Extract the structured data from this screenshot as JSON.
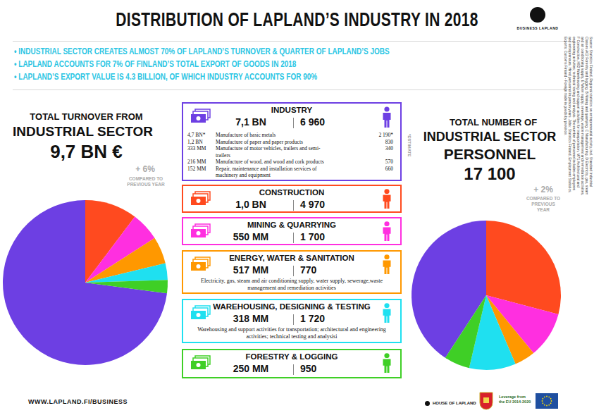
{
  "header": {
    "title": "DISTRIBUTION OF LAPLAND’S INDUSTRY IN 2018",
    "logo": "BUSINESS LAPLAND"
  },
  "bullets": [
    "• INDUSTRIAL SECTOR CREATES ALMOST 70% OF LAPLAND’S TURNOVER & QUARTER OF LAPLAND’S JOBS",
    "• LAPLAND ACCOUNTS FOR 7% OF FINLAND’S TOTAL EXPORT OF GOODS IN 2018",
    "• LAPLAND’S EXPORT VALUE IS 4.3 BILLION, OF WHICH INDUSTRY ACCOUNTS FOR 90%"
  ],
  "chart_data": [
    {
      "type": "pie",
      "title_lines": [
        "TOTAL TURNOVER FROM",
        "INDUSTRIAL SECTOR"
      ],
      "total": "9,7 BN €",
      "change": "+ 6%",
      "change_note": "COMPARED TO PREVIOUS YEAR",
      "categories": [
        "INDUSTRY",
        "CONSTRUCTION",
        "MINING & QUARRYING",
        "ENERGY, WATER & SANITATION",
        "WAREHOUSING, DESIGNING & TESTING",
        "FORESTRY & LOGGING"
      ],
      "values": [
        7.1,
        1.0,
        0.55,
        0.517,
        0.318,
        0.25
      ],
      "colors": [
        "#6d3fe3",
        "#ff4a1f",
        "#ff2fe0",
        "#ff9800",
        "#1fe0f0",
        "#3fcf26"
      ],
      "data_labels": false
    },
    {
      "type": "pie",
      "title_lines": [
        "TOTAL NUMBER OF",
        "INDUSTRIAL SECTOR",
        "PERSONNEL"
      ],
      "total": "17 100",
      "change": "+ 2%",
      "change_note": "COMPARED TO PREVIOUS YEAR",
      "categories": [
        "INDUSTRY",
        "CONSTRUCTION",
        "MINING & QUARRYING",
        "ENERGY, WATER & SANITATION",
        "WAREHOUSING, DESIGNING & TESTING",
        "FORESTRY & LOGGING"
      ],
      "values": [
        6960,
        4970,
        1700,
        770,
        1720,
        950
      ],
      "colors": [
        "#6d3fe3",
        "#ff4a1f",
        "#ff2fe0",
        "#ff9800",
        "#1fe0f0",
        "#3fcf26"
      ],
      "data_labels": false
    }
  ],
  "sectors": [
    {
      "name": "INDUSTRY",
      "turnover": "7,1 BN",
      "personnel": "6 960",
      "details": [
        {
          "turnover": "4,7 BN*",
          "name": "Manufacture of basic metals",
          "personnel": "2 190*"
        },
        {
          "turnover": "1,2 BN",
          "name": "Manufacture of paper and paper products",
          "personnel": "830"
        },
        {
          "turnover": "333 MM",
          "name": "Manufacture of motor vehicles, trailers and semi-trailers",
          "personnel": "340"
        },
        {
          "turnover": "216 MM",
          "name": "Manufacture of wood, and wood and cork products",
          "personnel": "570"
        },
        {
          "turnover": "152 MM",
          "name": "Repair, maintenance and installation services of machinery and equipment",
          "personnel": "660"
        }
      ]
    },
    {
      "name": "CONSTRUCTION",
      "turnover": "1,0 BN",
      "personnel": "4 970"
    },
    {
      "name": "MINING & QUARRYING",
      "turnover": "550 MM",
      "personnel": "1 700"
    },
    {
      "name": "ENERGY, WATER & SANITATION",
      "turnover": "517 MM",
      "personnel": "770",
      "description": "Electricity, gas, steam and air conditioning supply, water supply, sewerage,waste management and remediation activities"
    },
    {
      "name": "WAREHOUSING, DESIGNING & TESTING",
      "turnover": "318 MM",
      "personnel": "1 720",
      "description": "Warehousing and support activities for transportation; architectural and engineering activities; technical testing and analysisi"
    },
    {
      "name": "FORESTRY & LOGGING",
      "turnover": "250 MM",
      "personnel": "950"
    }
  ],
  "estimate_note": "*ESTIMATE",
  "source": "Source: Statistics Finland, Regional statistics on entrepreneurial activity, incl. Standard Industrial Classes A02 Forestry and logging, B Mining and quarrying, C Manufacturing, D Electricity, gas, steam and air conditioning supply, E Water supply; sewerage, waste management and remediation activities, F Construction, H52 Warehousing and support activities for transportation, M71 Architectural and engineering activities; technical testing and analysis. The number of personnel includes employees and entrepreneurs. Hired personnel in person years. Jobs: Statistics Finland, Employment Statistics. Exports: Customs Finland - Foreign trade in goods by province.",
  "footer": {
    "url": "WWW.LAPLAND.FI/BUSINESS",
    "partner": "HOUSE OF LAPLAND",
    "eu_note": "Leverage from the EU 2014-2020"
  }
}
